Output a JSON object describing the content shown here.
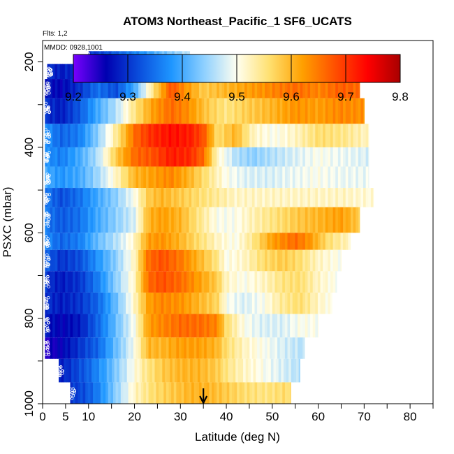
{
  "chart_data": {
    "type": "heatmap",
    "title": "ATOM3 Northeast_Pacific_1 SF6_UCATS",
    "flights_label": "Flts: 1,2",
    "date_label": "MMDD: 0928,1001",
    "xlabel": "Latitude (deg N)",
    "ylabel": "PSXC (mbar)",
    "xlim": [
      0,
      85
    ],
    "ylim": [
      1000,
      150
    ],
    "x_ticks": [
      0,
      5,
      10,
      20,
      30,
      40,
      50,
      60,
      70,
      80
    ],
    "y_ticks": [
      200,
      400,
      600,
      800,
      1000
    ],
    "colorbar": {
      "min": 9.2,
      "max": 9.8,
      "ticks": [
        9.2,
        9.3,
        9.4,
        9.5,
        9.6,
        9.7,
        9.8
      ],
      "stops": [
        "#7a00ff",
        "#0000b0",
        "#0a4ddc",
        "#1e96ff",
        "#8ed0ff",
        "#fffff0",
        "#ffe070",
        "#ffa000",
        "#ff5000",
        "#ff0000",
        "#a80000"
      ]
    },
    "marker_latitude": 35,
    "layers": [
      {
        "p_top": 175,
        "p_bot": 205,
        "lat_min": 10,
        "lat_max": 32,
        "knots": [
          [
            10,
            9.3
          ],
          [
            14,
            9.32
          ],
          [
            18,
            9.35
          ],
          [
            22,
            9.38
          ],
          [
            26,
            9.42
          ],
          [
            30,
            9.45
          ],
          [
            32,
            9.47
          ]
        ]
      },
      {
        "p_top": 205,
        "p_bot": 240,
        "lat_min": 1,
        "lat_max": 70,
        "knots": [
          [
            1,
            9.3
          ],
          [
            4,
            9.28
          ],
          [
            8,
            9.3
          ],
          [
            12,
            9.36
          ],
          [
            16,
            9.3
          ],
          [
            20,
            9.35
          ],
          [
            24,
            9.42
          ],
          [
            28,
            9.55
          ],
          [
            32,
            9.62
          ],
          [
            36,
            9.56
          ],
          [
            40,
            9.52
          ],
          [
            44,
            9.58
          ],
          [
            48,
            9.62
          ],
          [
            52,
            9.66
          ],
          [
            56,
            9.7
          ],
          [
            60,
            9.6
          ],
          [
            64,
            9.66
          ],
          [
            70,
            9.64
          ]
        ]
      },
      {
        "p_top": 240,
        "p_bot": 285,
        "lat_min": 0.5,
        "lat_max": 69,
        "knots": [
          [
            0.5,
            9.28
          ],
          [
            4,
            9.26
          ],
          [
            8,
            9.3
          ],
          [
            12,
            9.35
          ],
          [
            16,
            9.32
          ],
          [
            20,
            9.4
          ],
          [
            24,
            9.55
          ],
          [
            28,
            9.68
          ],
          [
            31,
            9.63
          ],
          [
            35,
            9.58
          ],
          [
            40,
            9.6
          ],
          [
            45,
            9.62
          ],
          [
            50,
            9.64
          ],
          [
            55,
            9.66
          ],
          [
            60,
            9.64
          ],
          [
            65,
            9.67
          ],
          [
            69,
            9.66
          ]
        ]
      },
      {
        "p_top": 285,
        "p_bot": 345,
        "lat_min": 0.5,
        "lat_max": 70,
        "knots": [
          [
            0.5,
            9.3
          ],
          [
            4,
            9.28
          ],
          [
            8,
            9.33
          ],
          [
            12,
            9.4
          ],
          [
            16,
            9.46
          ],
          [
            20,
            9.55
          ],
          [
            24,
            9.62
          ],
          [
            28,
            9.66
          ],
          [
            32,
            9.63
          ],
          [
            36,
            9.58
          ],
          [
            40,
            9.55
          ],
          [
            45,
            9.58
          ],
          [
            50,
            9.6
          ],
          [
            55,
            9.63
          ],
          [
            60,
            9.62
          ],
          [
            65,
            9.64
          ],
          [
            70,
            9.63
          ]
        ]
      },
      {
        "p_top": 345,
        "p_bot": 400,
        "lat_min": 0.5,
        "lat_max": 71,
        "knots": [
          [
            0.5,
            9.38
          ],
          [
            4,
            9.34
          ],
          [
            8,
            9.36
          ],
          [
            12,
            9.44
          ],
          [
            16,
            9.54
          ],
          [
            20,
            9.66
          ],
          [
            24,
            9.71
          ],
          [
            28,
            9.73
          ],
          [
            32,
            9.72
          ],
          [
            35,
            9.68
          ],
          [
            38,
            9.56
          ],
          [
            42,
            9.6
          ],
          [
            46,
            9.52
          ],
          [
            50,
            9.5
          ],
          [
            55,
            9.52
          ],
          [
            60,
            9.56
          ],
          [
            65,
            9.55
          ],
          [
            71,
            9.52
          ]
        ]
      },
      {
        "p_top": 400,
        "p_bot": 445,
        "lat_min": 0.5,
        "lat_max": 71,
        "knots": [
          [
            0.5,
            9.38
          ],
          [
            4,
            9.36
          ],
          [
            8,
            9.4
          ],
          [
            12,
            9.46
          ],
          [
            16,
            9.58
          ],
          [
            20,
            9.66
          ],
          [
            24,
            9.68
          ],
          [
            28,
            9.72
          ],
          [
            32,
            9.71
          ],
          [
            35,
            9.66
          ],
          [
            38,
            9.52
          ],
          [
            42,
            9.46
          ],
          [
            46,
            9.44
          ],
          [
            50,
            9.46
          ],
          [
            55,
            9.48
          ],
          [
            60,
            9.5
          ],
          [
            65,
            9.49
          ],
          [
            71,
            9.48
          ]
        ]
      },
      {
        "p_top": 445,
        "p_bot": 495,
        "lat_min": 0.5,
        "lat_max": 71,
        "knots": [
          [
            0.5,
            9.4
          ],
          [
            4,
            9.38
          ],
          [
            8,
            9.4
          ],
          [
            12,
            9.45
          ],
          [
            16,
            9.52
          ],
          [
            20,
            9.6
          ],
          [
            24,
            9.62
          ],
          [
            28,
            9.64
          ],
          [
            32,
            9.6
          ],
          [
            36,
            9.55
          ],
          [
            40,
            9.5
          ],
          [
            45,
            9.48
          ],
          [
            50,
            9.48
          ],
          [
            55,
            9.49
          ],
          [
            60,
            9.5
          ],
          [
            65,
            9.49
          ],
          [
            71,
            9.49
          ]
        ]
      },
      {
        "p_top": 495,
        "p_bot": 540,
        "lat_min": 0.5,
        "lat_max": 72,
        "knots": [
          [
            0.5,
            9.36
          ],
          [
            4,
            9.32
          ],
          [
            8,
            9.35
          ],
          [
            12,
            9.4
          ],
          [
            16,
            9.44
          ],
          [
            20,
            9.5
          ],
          [
            23,
            9.58
          ],
          [
            26,
            9.6
          ],
          [
            30,
            9.58
          ],
          [
            34,
            9.56
          ],
          [
            38,
            9.54
          ],
          [
            42,
            9.52
          ],
          [
            46,
            9.52
          ],
          [
            50,
            9.52
          ],
          [
            55,
            9.52
          ],
          [
            60,
            9.52
          ],
          [
            66,
            9.52
          ],
          [
            72,
            9.51
          ]
        ]
      },
      {
        "p_top": 540,
        "p_bot": 600,
        "lat_min": 0.5,
        "lat_max": 69,
        "knots": [
          [
            0.5,
            9.36
          ],
          [
            4,
            9.33
          ],
          [
            8,
            9.35
          ],
          [
            12,
            9.4
          ],
          [
            16,
            9.44
          ],
          [
            20,
            9.48
          ],
          [
            23,
            9.6
          ],
          [
            26,
            9.62
          ],
          [
            30,
            9.6
          ],
          [
            34,
            9.55
          ],
          [
            38,
            9.5
          ],
          [
            42,
            9.5
          ],
          [
            46,
            9.53
          ],
          [
            50,
            9.55
          ],
          [
            55,
            9.58
          ],
          [
            60,
            9.6
          ],
          [
            65,
            9.62
          ],
          [
            69,
            9.58
          ]
        ]
      },
      {
        "p_top": 600,
        "p_bot": 640,
        "lat_min": 0.5,
        "lat_max": 67,
        "knots": [
          [
            0.5,
            9.37
          ],
          [
            4,
            9.34
          ],
          [
            8,
            9.36
          ],
          [
            12,
            9.42
          ],
          [
            16,
            9.46
          ],
          [
            20,
            9.52
          ],
          [
            23,
            9.62
          ],
          [
            26,
            9.63
          ],
          [
            30,
            9.6
          ],
          [
            34,
            9.56
          ],
          [
            38,
            9.52
          ],
          [
            42,
            9.5
          ],
          [
            46,
            9.55
          ],
          [
            50,
            9.62
          ],
          [
            55,
            9.66
          ],
          [
            58,
            9.63
          ],
          [
            62,
            9.56
          ],
          [
            67,
            9.52
          ]
        ]
      },
      {
        "p_top": 640,
        "p_bot": 690,
        "lat_min": 0.5,
        "lat_max": 65,
        "knots": [
          [
            0.5,
            9.34
          ],
          [
            4,
            9.3
          ],
          [
            8,
            9.32
          ],
          [
            12,
            9.38
          ],
          [
            16,
            9.44
          ],
          [
            20,
            9.52
          ],
          [
            23,
            9.66
          ],
          [
            26,
            9.68
          ],
          [
            30,
            9.65
          ],
          [
            34,
            9.6
          ],
          [
            38,
            9.55
          ],
          [
            40,
            9.5
          ],
          [
            44,
            9.52
          ],
          [
            48,
            9.56
          ],
          [
            52,
            9.58
          ],
          [
            56,
            9.56
          ],
          [
            60,
            9.52
          ],
          [
            65,
            9.5
          ]
        ]
      },
      {
        "p_top": 690,
        "p_bot": 740,
        "lat_min": 0.5,
        "lat_max": 64,
        "knots": [
          [
            0.5,
            9.3
          ],
          [
            4,
            9.28
          ],
          [
            8,
            9.3
          ],
          [
            12,
            9.36
          ],
          [
            16,
            9.44
          ],
          [
            20,
            9.52
          ],
          [
            23,
            9.66
          ],
          [
            26,
            9.68
          ],
          [
            30,
            9.66
          ],
          [
            34,
            9.62
          ],
          [
            38,
            9.58
          ],
          [
            40,
            9.52
          ],
          [
            44,
            9.5
          ],
          [
            48,
            9.52
          ],
          [
            52,
            9.55
          ],
          [
            56,
            9.56
          ],
          [
            60,
            9.52
          ],
          [
            64,
            9.5
          ]
        ]
      },
      {
        "p_top": 740,
        "p_bot": 790,
        "lat_min": 0.5,
        "lat_max": 63,
        "knots": [
          [
            0.5,
            9.3
          ],
          [
            4,
            9.28
          ],
          [
            8,
            9.3
          ],
          [
            12,
            9.34
          ],
          [
            16,
            9.42
          ],
          [
            20,
            9.52
          ],
          [
            23,
            9.62
          ],
          [
            26,
            9.64
          ],
          [
            30,
            9.63
          ],
          [
            34,
            9.6
          ],
          [
            38,
            9.57
          ],
          [
            40,
            9.5
          ],
          [
            44,
            9.48
          ],
          [
            48,
            9.5
          ],
          [
            52,
            9.54
          ],
          [
            56,
            9.56
          ],
          [
            60,
            9.52
          ],
          [
            63,
            9.5
          ]
        ]
      },
      {
        "p_top": 790,
        "p_bot": 845,
        "lat_min": 0.5,
        "lat_max": 60,
        "knots": [
          [
            0.5,
            9.28
          ],
          [
            4,
            9.26
          ],
          [
            8,
            9.28
          ],
          [
            12,
            9.34
          ],
          [
            16,
            9.42
          ],
          [
            20,
            9.5
          ],
          [
            23,
            9.62
          ],
          [
            26,
            9.64
          ],
          [
            30,
            9.66
          ],
          [
            34,
            9.66
          ],
          [
            38,
            9.64
          ],
          [
            40,
            9.56
          ],
          [
            44,
            9.5
          ],
          [
            48,
            9.48
          ],
          [
            52,
            9.48
          ],
          [
            56,
            9.5
          ],
          [
            60,
            9.5
          ]
        ]
      },
      {
        "p_top": 845,
        "p_bot": 895,
        "lat_min": 0.5,
        "lat_max": 57,
        "knots": [
          [
            0.5,
            9.24
          ],
          [
            4,
            9.26
          ],
          [
            8,
            9.3
          ],
          [
            12,
            9.34
          ],
          [
            16,
            9.42
          ],
          [
            20,
            9.5
          ],
          [
            23,
            9.6
          ],
          [
            26,
            9.6
          ],
          [
            30,
            9.62
          ],
          [
            34,
            9.62
          ],
          [
            38,
            9.6
          ],
          [
            40,
            9.56
          ],
          [
            44,
            9.52
          ],
          [
            48,
            9.5
          ],
          [
            52,
            9.48
          ],
          [
            57,
            9.46
          ]
        ]
      },
      {
        "p_top": 895,
        "p_bot": 950,
        "lat_min": 3.5,
        "lat_max": 56,
        "knots": [
          [
            3.5,
            9.28
          ],
          [
            6,
            9.3
          ],
          [
            10,
            9.34
          ],
          [
            14,
            9.4
          ],
          [
            18,
            9.47
          ],
          [
            22,
            9.54
          ],
          [
            26,
            9.58
          ],
          [
            30,
            9.6
          ],
          [
            34,
            9.6
          ],
          [
            38,
            9.58
          ],
          [
            40,
            9.55
          ],
          [
            44,
            9.52
          ],
          [
            48,
            9.5
          ],
          [
            52,
            9.48
          ],
          [
            56,
            9.46
          ]
        ]
      },
      {
        "p_top": 950,
        "p_bot": 1000,
        "lat_min": 6,
        "lat_max": 54,
        "knots": [
          [
            6,
            9.3
          ],
          [
            9,
            9.32
          ],
          [
            12,
            9.36
          ],
          [
            16,
            9.44
          ],
          [
            20,
            9.52
          ],
          [
            24,
            9.56
          ],
          [
            28,
            9.58
          ],
          [
            32,
            9.6
          ],
          [
            36,
            9.6
          ],
          [
            40,
            9.58
          ],
          [
            44,
            9.56
          ],
          [
            48,
            9.55
          ],
          [
            52,
            9.56
          ],
          [
            54,
            9.56
          ]
        ]
      }
    ]
  }
}
